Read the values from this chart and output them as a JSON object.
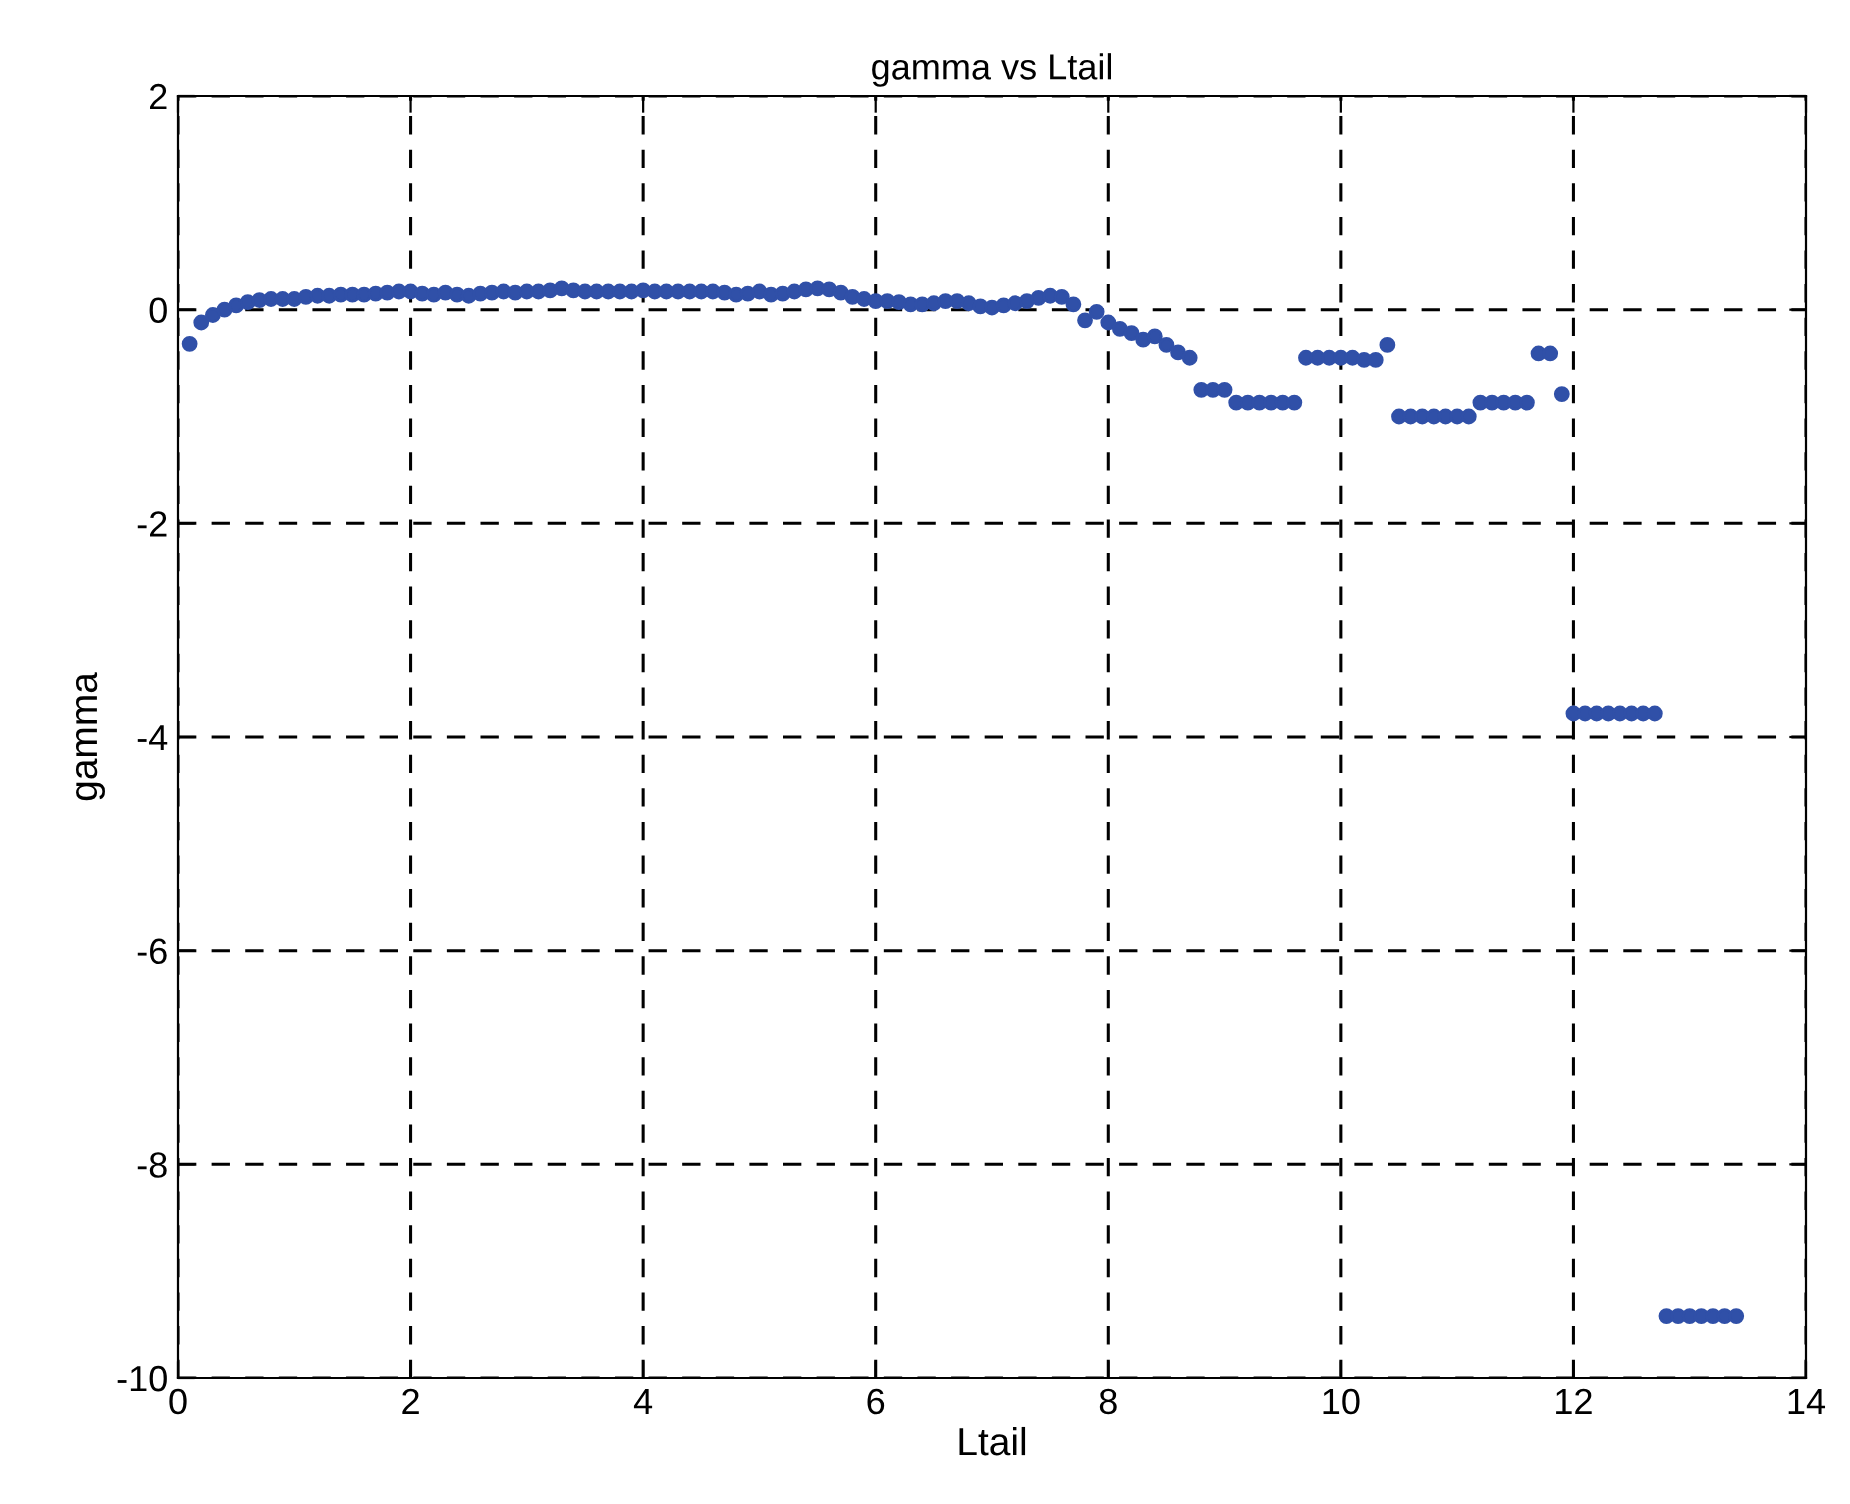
{
  "chart_data": {
    "type": "scatter",
    "title": "gamma vs Ltail",
    "xlabel": "Ltail",
    "ylabel": "gamma",
    "xlim": [
      0,
      14
    ],
    "ylim": [
      -10,
      2
    ],
    "xticks": [
      0,
      2,
      4,
      6,
      8,
      10,
      12,
      14
    ],
    "yticks": [
      -10,
      -8,
      -6,
      -4,
      -2,
      0,
      2
    ],
    "grid": true,
    "marker": "circle",
    "series": [
      {
        "color": "#3050a8",
        "x": [
          0.1,
          0.2,
          0.3,
          0.4,
          0.5,
          0.6,
          0.7,
          0.8,
          0.9,
          1.0,
          1.1,
          1.2,
          1.3,
          1.4,
          1.5,
          1.6,
          1.7,
          1.8,
          1.9,
          2.0,
          2.1,
          2.2,
          2.3,
          2.4,
          2.5,
          2.6,
          2.7,
          2.8,
          2.9,
          3.0,
          3.1,
          3.2,
          3.3,
          3.4,
          3.5,
          3.6,
          3.7,
          3.8,
          3.9,
          4.0,
          4.1,
          4.2,
          4.3,
          4.4,
          4.5,
          4.6,
          4.7,
          4.8,
          4.9,
          5.0,
          5.1,
          5.2,
          5.3,
          5.4,
          5.5,
          5.6,
          5.7,
          5.8,
          5.9,
          6.0,
          6.1,
          6.2,
          6.3,
          6.4,
          6.5,
          6.6,
          6.7,
          6.8,
          6.9,
          7.0,
          7.1,
          7.2,
          7.3,
          7.4,
          7.5,
          7.6,
          7.7,
          7.8,
          7.9,
          8.0,
          8.1,
          8.2,
          8.3,
          8.4,
          8.5,
          8.6,
          8.7,
          8.8,
          8.9,
          9.0,
          9.1,
          9.2,
          9.3,
          9.4,
          9.5,
          9.6,
          9.7,
          9.8,
          9.9,
          10.0,
          10.1,
          10.2,
          10.3,
          10.4,
          10.5,
          10.6,
          10.7,
          10.8,
          10.9,
          11.0,
          11.1,
          11.2,
          11.3,
          11.4,
          11.5,
          11.6,
          11.7,
          11.8,
          11.9,
          12.0,
          12.1,
          12.2,
          12.3,
          12.4,
          12.5,
          12.6,
          12.7,
          12.8,
          12.9,
          13.0,
          13.1,
          13.2,
          13.3,
          13.4
        ],
        "values": [
          -0.32,
          -0.12,
          -0.05,
          0.0,
          0.04,
          0.07,
          0.09,
          0.1,
          0.1,
          0.1,
          0.12,
          0.13,
          0.13,
          0.14,
          0.14,
          0.14,
          0.15,
          0.16,
          0.17,
          0.17,
          0.15,
          0.14,
          0.16,
          0.14,
          0.13,
          0.15,
          0.16,
          0.17,
          0.16,
          0.17,
          0.17,
          0.18,
          0.2,
          0.18,
          0.17,
          0.17,
          0.17,
          0.17,
          0.17,
          0.18,
          0.17,
          0.17,
          0.17,
          0.17,
          0.17,
          0.17,
          0.16,
          0.14,
          0.15,
          0.17,
          0.14,
          0.15,
          0.17,
          0.19,
          0.2,
          0.19,
          0.16,
          0.12,
          0.1,
          0.08,
          0.08,
          0.07,
          0.05,
          0.05,
          0.06,
          0.08,
          0.08,
          0.06,
          0.03,
          0.02,
          0.04,
          0.06,
          0.08,
          0.11,
          0.13,
          0.12,
          0.05,
          -0.1,
          -0.02,
          -0.12,
          -0.18,
          -0.22,
          -0.28,
          -0.25,
          -0.33,
          -0.4,
          -0.45,
          -0.75,
          -0.75,
          -0.75,
          -0.87,
          -0.87,
          -0.87,
          -0.87,
          -0.87,
          -0.87,
          -0.45,
          -0.45,
          -0.45,
          -0.45,
          -0.45,
          -0.47,
          -0.47,
          -0.33,
          -1.0,
          -1.0,
          -1.0,
          -1.0,
          -1.0,
          -1.0,
          -1.0,
          -0.87,
          -0.87,
          -0.87,
          -0.87,
          -0.87,
          -0.41,
          -0.41,
          -0.79,
          -3.78,
          -3.78,
          -3.78,
          -3.78,
          -3.78,
          -3.78,
          -3.78,
          -3.78,
          -9.42,
          -9.42,
          -9.42,
          -9.42,
          -9.42,
          -9.42,
          -9.42
        ]
      }
    ]
  }
}
